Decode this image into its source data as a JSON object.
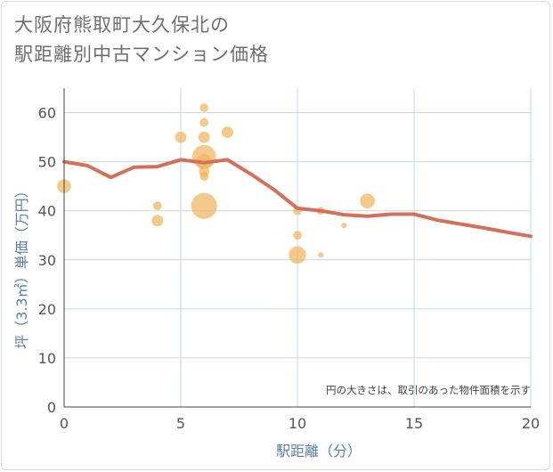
{
  "title": {
    "line1": "大阪府熊取町大久保北の",
    "line2": "駅距離別中古マンション価格"
  },
  "colors": {
    "line": "#d4705a",
    "bubble": "#efb65b",
    "grid": "#c9d7e6",
    "axis_title": "#5b7fa6"
  },
  "chart_data": {
    "type": "scatter",
    "xlabel": "駅距離（分）",
    "ylabel": "坪（3.3㎡）単価（万円）",
    "xlim": [
      0,
      20
    ],
    "ylim": [
      0,
      65
    ],
    "xticks": [
      0,
      5,
      10,
      15,
      20
    ],
    "yticks": [
      0,
      10,
      20,
      30,
      40,
      50,
      60
    ],
    "grid": true,
    "annotation": "円の大きさは、取引のあった物件面積を示す",
    "line": {
      "x": [
        0,
        1,
        2,
        3,
        4,
        5,
        6,
        7,
        8,
        9,
        10,
        11,
        12,
        13,
        14,
        15,
        16,
        17,
        18,
        19,
        20
      ],
      "y": [
        50,
        49.2,
        46.8,
        48.9,
        49,
        50.4,
        49.8,
        50.4,
        47.5,
        44.3,
        40.5,
        40,
        39.2,
        38.9,
        39.3,
        39.3,
        38.1,
        37.3,
        36.5,
        35.6,
        34.8
      ]
    },
    "bubbles": [
      {
        "x": 0,
        "y": 45,
        "size": 3
      },
      {
        "x": 4,
        "y": 41,
        "size": 1
      },
      {
        "x": 4,
        "y": 38,
        "size": 2
      },
      {
        "x": 5,
        "y": 55,
        "size": 2
      },
      {
        "x": 6,
        "y": 61,
        "size": 1
      },
      {
        "x": 6,
        "y": 58,
        "size": 1
      },
      {
        "x": 6,
        "y": 55,
        "size": 2
      },
      {
        "x": 6,
        "y": 51,
        "size": 10
      },
      {
        "x": 6,
        "y": 50,
        "size": 4
      },
      {
        "x": 6,
        "y": 48,
        "size": 1.5
      },
      {
        "x": 6,
        "y": 47,
        "size": 1
      },
      {
        "x": 6,
        "y": 41,
        "size": 12
      },
      {
        "x": 7,
        "y": 56,
        "size": 2
      },
      {
        "x": 10,
        "y": 40,
        "size": 1
      },
      {
        "x": 10,
        "y": 35,
        "size": 1
      },
      {
        "x": 10,
        "y": 31,
        "size": 5
      },
      {
        "x": 11,
        "y": 40,
        "size": 0.8
      },
      {
        "x": 11,
        "y": 31,
        "size": 0.3
      },
      {
        "x": 12,
        "y": 37,
        "size": 0.3
      },
      {
        "x": 13,
        "y": 42,
        "size": 3.5
      }
    ]
  }
}
